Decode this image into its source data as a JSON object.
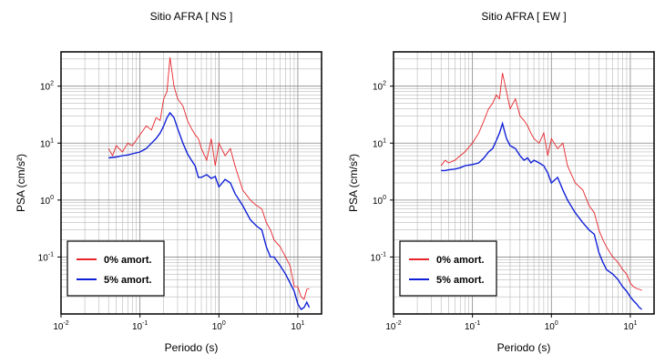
{
  "chart_data": [
    {
      "type": "line",
      "title": "Sitio AFRA [ NS ]",
      "xlabel": "Periodo (s)",
      "ylabel": "PSA (cm/s²)",
      "xlog": true,
      "ylog": true,
      "grid": true,
      "legend": "lower left",
      "xlim": [
        0.01,
        20
      ],
      "ylim": [
        0.01,
        400
      ],
      "xticks": [
        {
          "value": 0.01,
          "label": "10^-2"
        },
        {
          "value": 0.1,
          "label": "10^-1"
        },
        {
          "value": 1,
          "label": "10^0"
        },
        {
          "value": 10,
          "label": "10^1"
        }
      ],
      "yticks": [
        {
          "value": 0.1,
          "label": "10^-1"
        },
        {
          "value": 1,
          "label": "10^0"
        },
        {
          "value": 10,
          "label": "10^1"
        },
        {
          "value": 100,
          "label": "10^2"
        }
      ],
      "x": [
        0.04,
        0.045,
        0.05,
        0.06,
        0.07,
        0.08,
        0.1,
        0.12,
        0.14,
        0.16,
        0.18,
        0.2,
        0.22,
        0.24,
        0.27,
        0.3,
        0.35,
        0.4,
        0.45,
        0.5,
        0.55,
        0.6,
        0.7,
        0.8,
        0.9,
        1,
        1.2,
        1.4,
        1.6,
        2,
        2.5,
        3,
        3.5,
        4,
        4.5,
        5,
        6,
        7,
        8,
        9,
        10,
        11,
        12,
        13,
        14
      ],
      "series": [
        {
          "name": "0% amort.",
          "color": "#e8242a",
          "values": [
            8,
            6,
            9,
            7,
            10,
            9,
            14,
            20,
            17,
            28,
            25,
            60,
            80,
            320,
            100,
            60,
            45,
            25,
            18,
            14,
            12,
            8,
            5,
            12,
            4,
            10,
            6,
            8,
            4,
            1.5,
            1,
            0.8,
            0.7,
            0.4,
            0.3,
            0.2,
            0.15,
            0.1,
            0.07,
            0.03,
            0.03,
            0.02,
            0.018,
            0.027,
            0.028
          ]
        },
        {
          "name": "5% amort.",
          "color": "#1020d8",
          "values": [
            5.5,
            5.6,
            5.7,
            6,
            6.2,
            6.5,
            7,
            8,
            10,
            12,
            15,
            20,
            28,
            34,
            28,
            18,
            10,
            6.5,
            5,
            4,
            2.5,
            2.5,
            2.8,
            2.4,
            2.6,
            1.7,
            2.3,
            2,
            1.3,
            0.8,
            0.45,
            0.35,
            0.3,
            0.15,
            0.1,
            0.1,
            0.07,
            0.05,
            0.035,
            0.025,
            0.015,
            0.012,
            0.013,
            0.016,
            0.013
          ]
        }
      ]
    },
    {
      "type": "line",
      "title": "Sitio AFRA [ EW ]",
      "xlabel": "Periodo (s)",
      "ylabel": "PSA (cm/s²)",
      "xlog": true,
      "ylog": true,
      "grid": true,
      "legend": "lower left",
      "xlim": [
        0.01,
        20
      ],
      "ylim": [
        0.01,
        400
      ],
      "xticks": [
        {
          "value": 0.01,
          "label": "10^-2"
        },
        {
          "value": 0.1,
          "label": "10^-1"
        },
        {
          "value": 1,
          "label": "10^0"
        },
        {
          "value": 10,
          "label": "10^1"
        }
      ],
      "yticks": [
        {
          "value": 0.1,
          "label": "10^-1"
        },
        {
          "value": 1,
          "label": "10^0"
        },
        {
          "value": 10,
          "label": "10^1"
        },
        {
          "value": 100,
          "label": "10^2"
        }
      ],
      "x": [
        0.04,
        0.045,
        0.05,
        0.06,
        0.07,
        0.08,
        0.1,
        0.12,
        0.14,
        0.16,
        0.18,
        0.2,
        0.22,
        0.24,
        0.27,
        0.3,
        0.35,
        0.4,
        0.45,
        0.5,
        0.55,
        0.6,
        0.7,
        0.8,
        0.9,
        1,
        1.2,
        1.4,
        1.6,
        2,
        2.5,
        3,
        3.5,
        4,
        4.5,
        5,
        6,
        7,
        8,
        9,
        10,
        11,
        12,
        13,
        14
      ],
      "series": [
        {
          "name": "0% amort.",
          "color": "#e8242a",
          "values": [
            4,
            5,
            4.5,
            5,
            6,
            7,
            10,
            15,
            25,
            40,
            50,
            70,
            60,
            170,
            80,
            40,
            60,
            30,
            25,
            20,
            15,
            12,
            10,
            15,
            6,
            12,
            8,
            10,
            4,
            2,
            1.5,
            0.8,
            0.6,
            0.3,
            0.2,
            0.15,
            0.1,
            0.08,
            0.06,
            0.05,
            0.035,
            0.03,
            0.028,
            0.027,
            0.026
          ]
        },
        {
          "name": "5% amort.",
          "color": "#1020d8",
          "values": [
            3.3,
            3.3,
            3.4,
            3.5,
            3.7,
            4,
            4.2,
            4.5,
            5.5,
            7,
            8,
            11,
            15,
            22,
            12,
            9,
            8,
            6,
            5,
            5.5,
            4.5,
            5,
            4.5,
            4,
            3,
            2,
            2.5,
            1.5,
            1,
            0.6,
            0.4,
            0.3,
            0.25,
            0.12,
            0.08,
            0.06,
            0.05,
            0.04,
            0.03,
            0.025,
            0.02,
            0.017,
            0.015,
            0.013,
            0.012
          ]
        }
      ]
    }
  ]
}
